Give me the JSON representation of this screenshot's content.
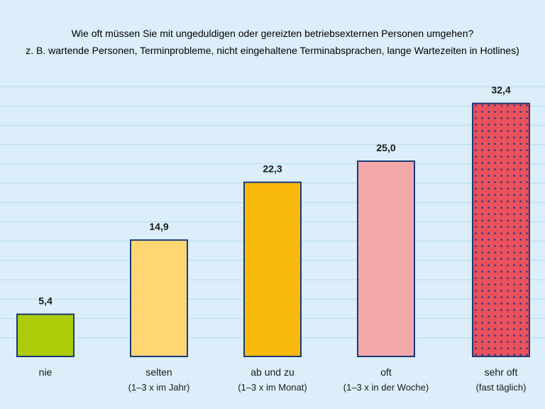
{
  "colors": {
    "background": "#dbeef9",
    "gridline": "#b8dcef",
    "bar_border": "#1b3a7a",
    "text": "#1a1a1a",
    "dot": "#1b3a7a"
  },
  "chart_data": {
    "type": "bar",
    "title": "Wie oft müssen Sie mit ungeduldigen oder gereizten betriebsexternen Personen umgehen?",
    "subtitle": "z. B. wartende Personen, Terminprobleme, nicht eingehaltene Terminabsprachen, lange Wartezeiten in Hotlines)",
    "xlabel": "",
    "ylabel": "",
    "ylim": [
      0,
      36
    ],
    "grid": true,
    "categories": [
      {
        "label": "nie",
        "sublabel": "",
        "value": 5.4,
        "value_label": "5,4",
        "color": "#aecc0a",
        "pattern": "none"
      },
      {
        "label": "selten",
        "sublabel": "(1–3 x im Jahr)",
        "value": 14.9,
        "value_label": "14,9",
        "color": "#fed672",
        "pattern": "none"
      },
      {
        "label": "ab und zu",
        "sublabel": "(1–3 x im Monat)",
        "value": 22.3,
        "value_label": "22,3",
        "color": "#fab90d",
        "pattern": "none"
      },
      {
        "label": "oft",
        "sublabel": "(1–3 x in der Woche)",
        "value": 25.0,
        "value_label": "25,0",
        "color": "#f2a7a9",
        "pattern": "none"
      },
      {
        "label": "sehr oft",
        "sublabel": "(fast täglich)",
        "value": 32.4,
        "value_label": "32,4",
        "color": "#e8515d",
        "pattern": "dots"
      }
    ]
  }
}
